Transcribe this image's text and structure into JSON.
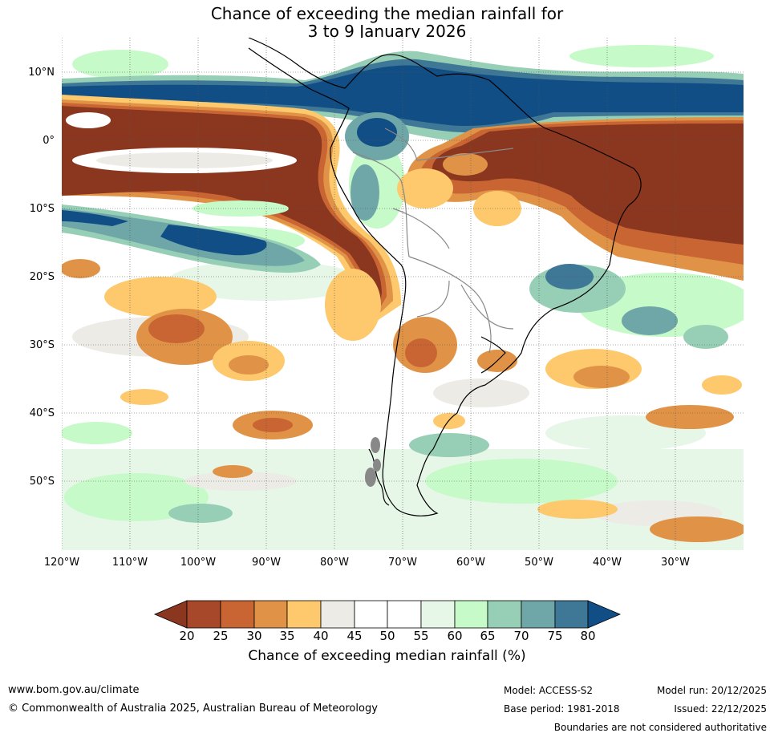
{
  "title": {
    "line1": "Chance of exceeding the median rainfall for",
    "line2": "3 to 9 January 2026"
  },
  "axes": {
    "lat_labels": [
      "10°N",
      "0°",
      "10°S",
      "20°S",
      "30°S",
      "40°S",
      "50°S"
    ],
    "lon_labels": [
      "120°W",
      "110°W",
      "100°W",
      "90°W",
      "80°W",
      "70°W",
      "60°W",
      "50°W",
      "40°W",
      "30°W"
    ]
  },
  "colorbar": {
    "title": "Chance of exceeding median rainfall (%)",
    "ticks": [
      "20",
      "25",
      "30",
      "35",
      "40",
      "45",
      "50",
      "55",
      "60",
      "65",
      "70",
      "75",
      "80"
    ],
    "colors": {
      "lt20": "#8b3720",
      "b20_25": "#a8482a",
      "b25_30": "#c96532",
      "b30_35": "#e09347",
      "b35_40": "#fdc96c",
      "b40_45": "#edebe6",
      "b45_50": "#ffffff",
      "b50_55": "#ffffff",
      "b55_60": "#e6f6e7",
      "b60_65": "#c6fac8",
      "b65_70": "#97cfb6",
      "b70_75": "#6fa7a8",
      "b75_80": "#3f7897",
      "gt80": "#114e85"
    }
  },
  "footer": {
    "url": "www.bom.gov.au/climate",
    "copyright": "© Commonwealth of Australia 2025, Australian Bureau of Meteorology",
    "model": "Model: ACCESS-S2",
    "base_period": "Base period: 1981-2018",
    "model_run": "Model run: 20/12/2025",
    "issued": "Issued: 22/12/2025",
    "disclaimer": "Boundaries are not considered authoritative"
  }
}
